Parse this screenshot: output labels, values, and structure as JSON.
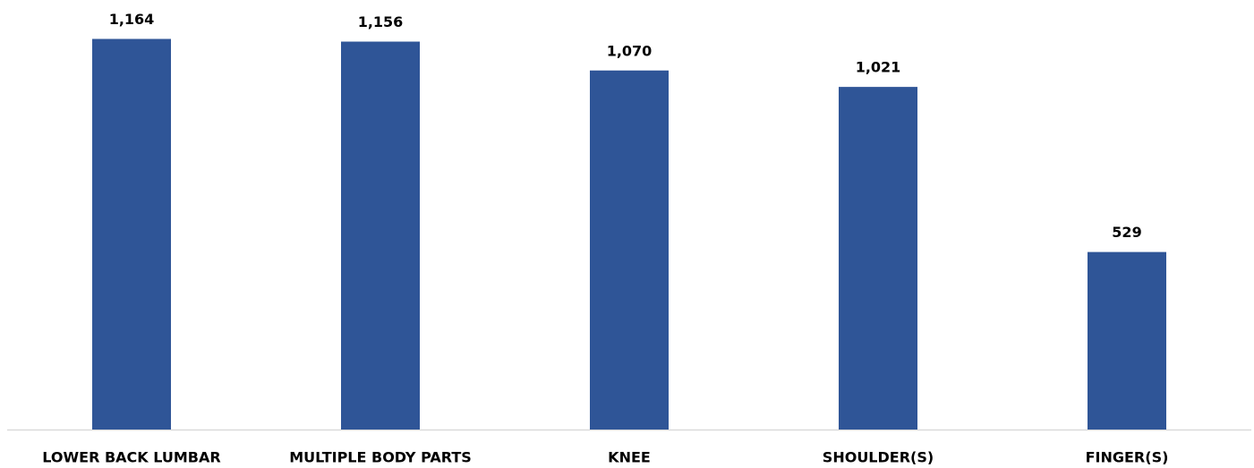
{
  "chart_data": {
    "type": "bar",
    "categories": [
      "LOWER BACK LUMBAR",
      "MULTIPLE BODY PARTS",
      "KNEE",
      "SHOULDER(S)",
      "FINGER(S)"
    ],
    "values": [
      1164,
      1156,
      1070,
      1021,
      529
    ],
    "value_labels": [
      "1,164",
      "1,156",
      "1,070",
      "1,021",
      "529"
    ],
    "color": "#2f5597",
    "ylim": [
      0,
      1280
    ]
  }
}
